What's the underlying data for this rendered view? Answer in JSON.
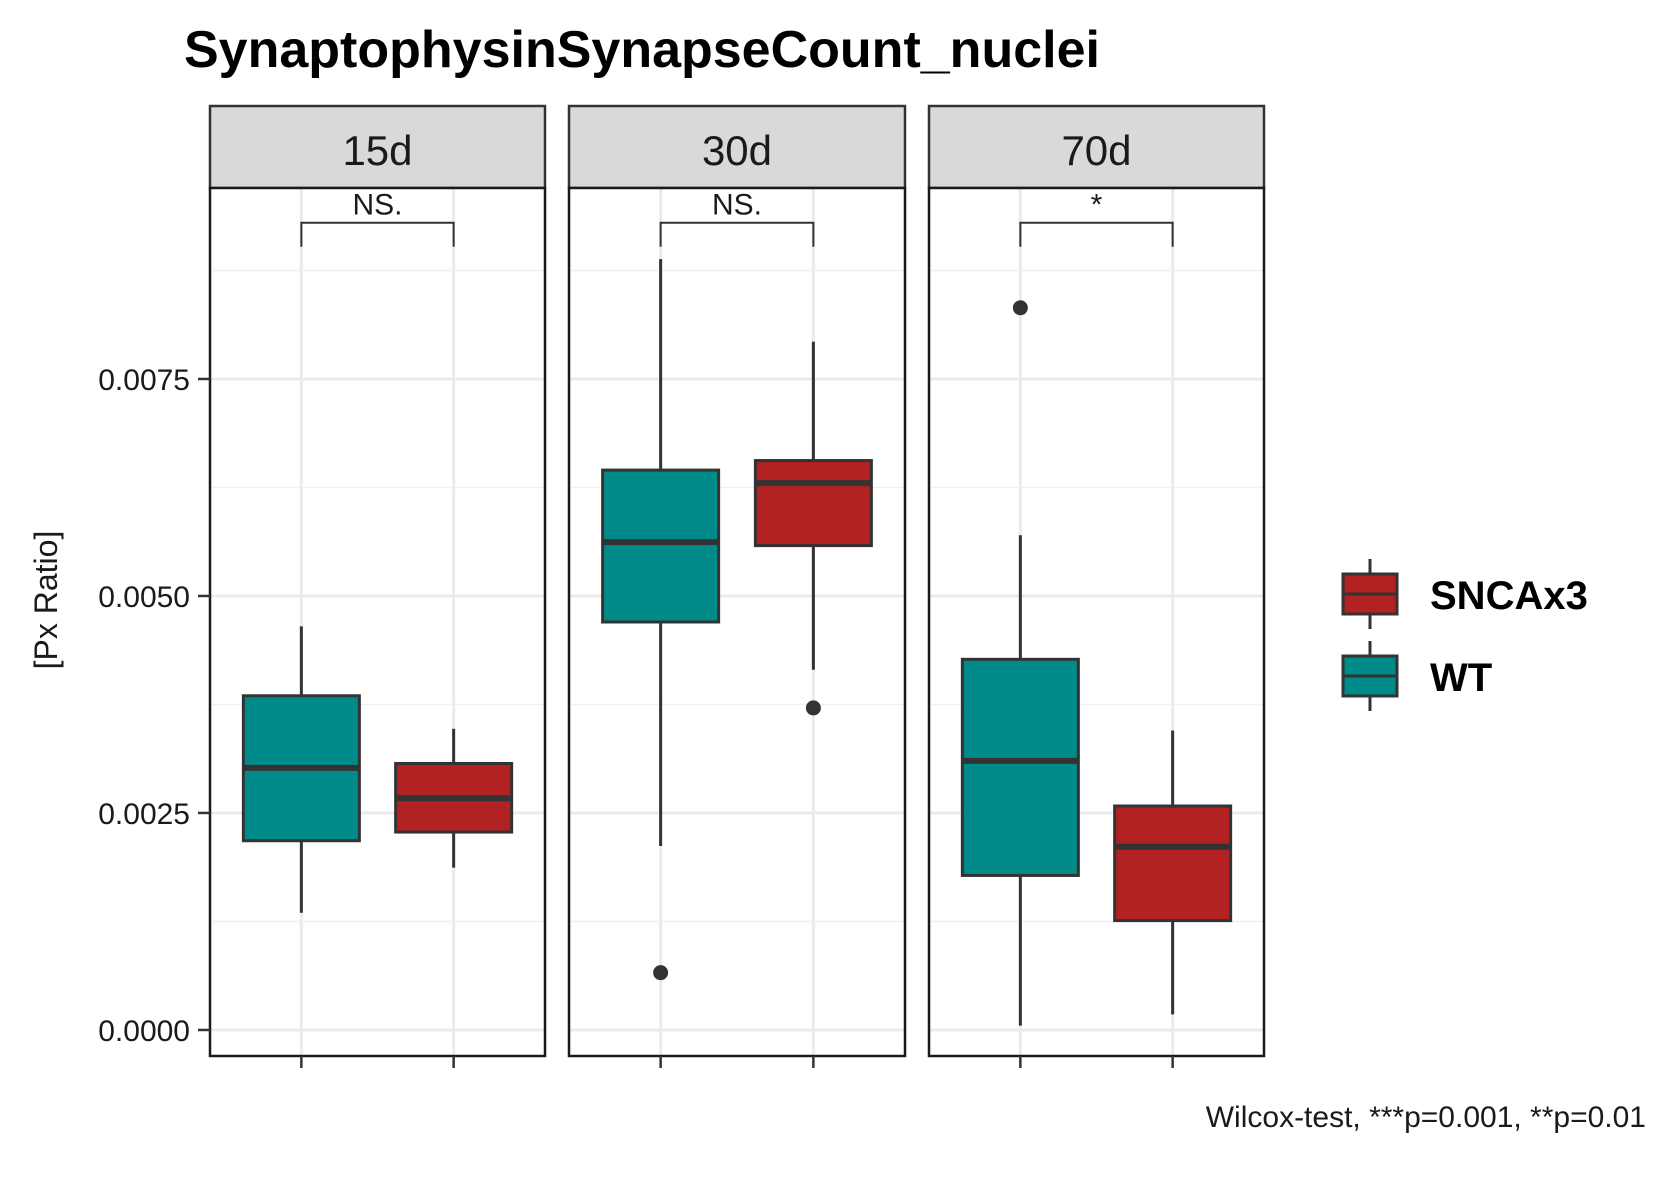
{
  "chart_data": {
    "type": "boxplot",
    "title": "SynaptophysinSynapseCount_nuclei",
    "ylabel": "[Px Ratio]",
    "xlabel": "",
    "ylim": [
      -0.0003,
      0.0097
    ],
    "yticks": [
      "0.0000",
      "0.0025",
      "0.0050",
      "0.0075"
    ],
    "ytick_values": [
      0,
      0.0025,
      0.005,
      0.0075
    ],
    "facets": [
      "15d",
      "30d",
      "70d"
    ],
    "groups": [
      "WT",
      "SNCAx3"
    ],
    "colors": {
      "WT": "#008B8B",
      "SNCAx3": "#B22222"
    },
    "boxes": [
      {
        "facet": "15d",
        "group": "WT",
        "lower_whisker": 0.00135,
        "q1": 0.00218,
        "median": 0.00302,
        "q3": 0.00385,
        "upper_whisker": 0.00465,
        "outliers": []
      },
      {
        "facet": "15d",
        "group": "SNCAx3",
        "lower_whisker": 0.00187,
        "q1": 0.00228,
        "median": 0.00267,
        "q3": 0.00307,
        "upper_whisker": 0.00347,
        "outliers": []
      },
      {
        "facet": "30d",
        "group": "WT",
        "lower_whisker": 0.00212,
        "q1": 0.0047,
        "median": 0.00562,
        "q3": 0.00645,
        "upper_whisker": 0.00888,
        "outliers": [
          0.00066
        ]
      },
      {
        "facet": "30d",
        "group": "SNCAx3",
        "lower_whisker": 0.00415,
        "q1": 0.00558,
        "median": 0.0063,
        "q3": 0.00656,
        "upper_whisker": 0.00793,
        "outliers": [
          0.00371
        ]
      },
      {
        "facet": "70d",
        "group": "WT",
        "lower_whisker": 5e-05,
        "q1": 0.00178,
        "median": 0.0031,
        "q3": 0.00427,
        "upper_whisker": 0.0057,
        "outliers": [
          0.00832
        ]
      },
      {
        "facet": "70d",
        "group": "SNCAx3",
        "lower_whisker": 0.00018,
        "q1": 0.00126,
        "median": 0.00211,
        "q3": 0.00258,
        "upper_whisker": 0.00345,
        "outliers": []
      }
    ],
    "significance": [
      {
        "facet": "15d",
        "label": "NS.",
        "y": 0.0093
      },
      {
        "facet": "30d",
        "label": "NS.",
        "y": 0.0093
      },
      {
        "facet": "70d",
        "label": "*",
        "y": 0.0093
      }
    ],
    "legend": {
      "position": "right",
      "entries": [
        "SNCAx3",
        "WT"
      ]
    },
    "caption": "Wilcox-test, ***p=0.001, **p=0.01"
  }
}
